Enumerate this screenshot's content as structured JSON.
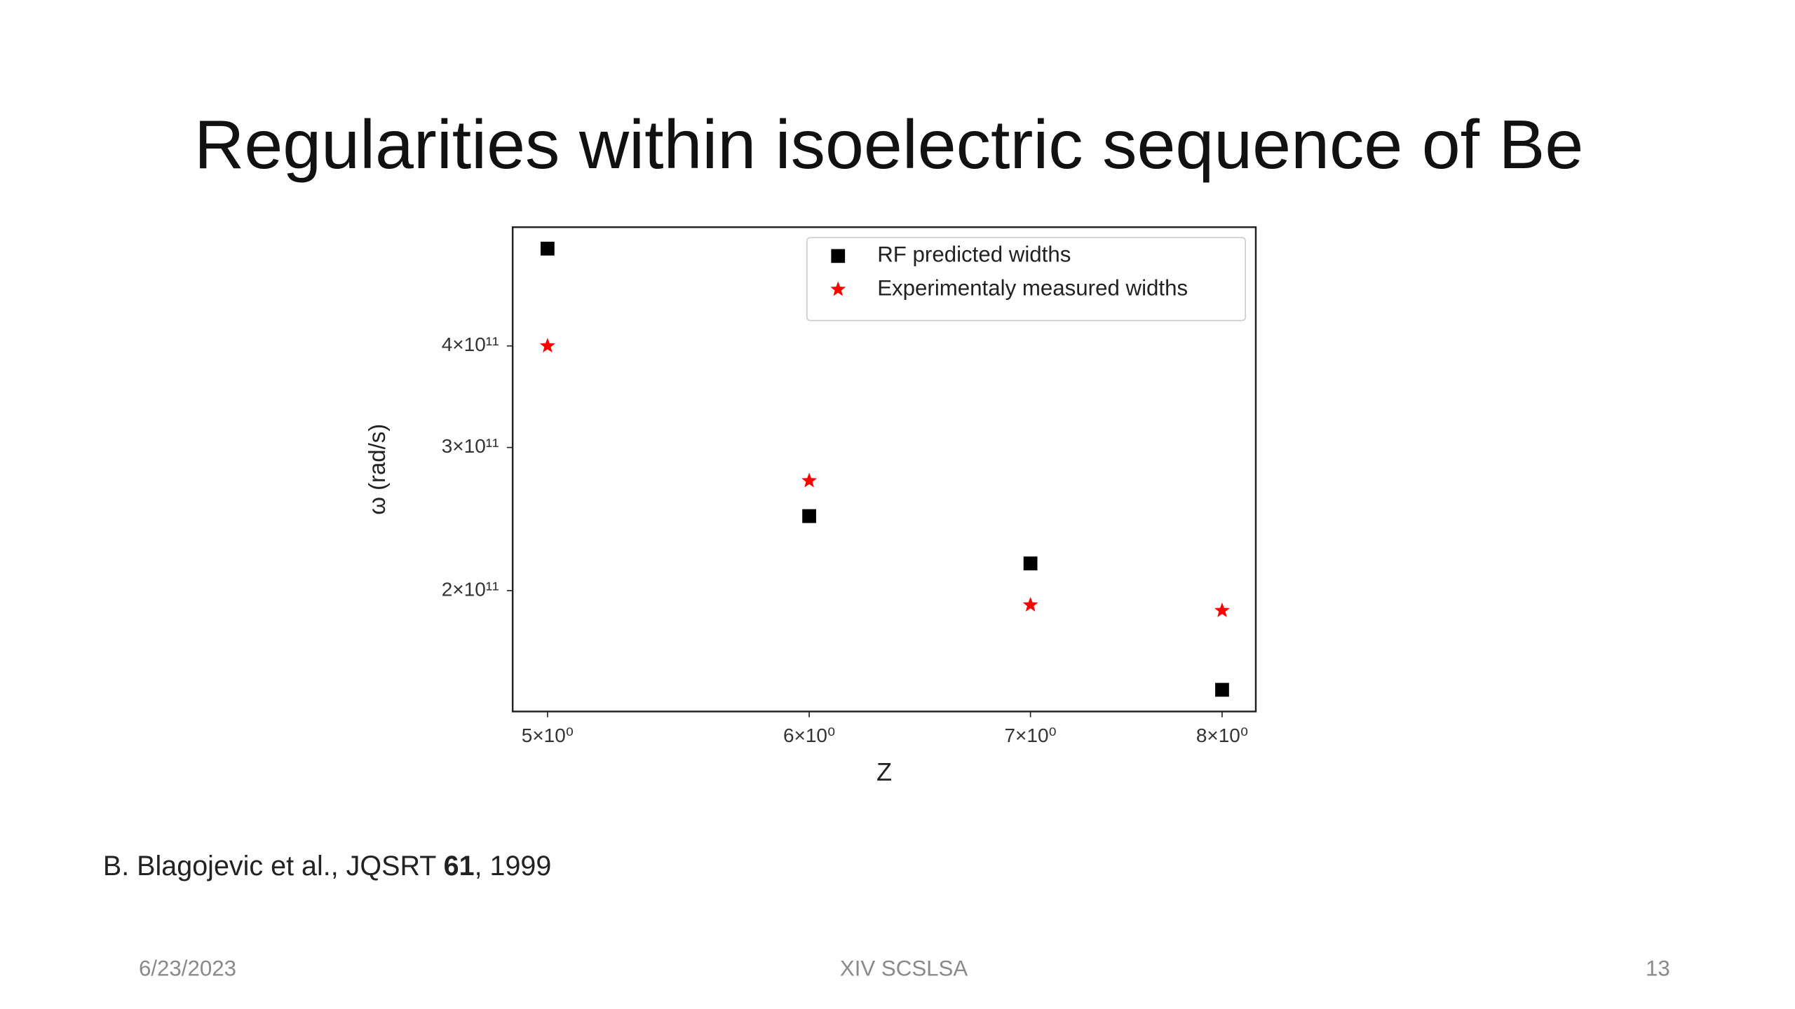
{
  "slide": {
    "title": "Regularities within isoelectric sequence of Be",
    "citation": {
      "before": "B. Blagojevic et al., JQSRT ",
      "volume": "61",
      "after": ", 1999"
    },
    "footer": {
      "date": "6/23/2023",
      "event": "XIV SCSLSA",
      "page": "13"
    }
  },
  "chart_data": {
    "type": "scatter",
    "xlabel": "Z",
    "ylabel": "ω (rad/s)",
    "xscale": "log",
    "yscale": "log",
    "xlim": [
      4.88,
      8.19
    ],
    "ylim": [
      142000000000,
      560000000000
    ],
    "xticks": [
      {
        "value": 5,
        "label": "5×10⁰"
      },
      {
        "value": 6,
        "label": "6×10⁰"
      },
      {
        "value": 7,
        "label": "7×10⁰"
      },
      {
        "value": 8,
        "label": "8×10⁰"
      }
    ],
    "yticks": [
      {
        "value": 200000000000,
        "label": "2×10¹¹"
      },
      {
        "value": 300000000000,
        "label": "3×10¹¹"
      },
      {
        "value": 400000000000,
        "label": "4×10¹¹"
      }
    ],
    "legend": "upper right",
    "series": [
      {
        "name": "RF predicted widths",
        "color": "#000000",
        "marker": "square",
        "x": [
          5,
          6,
          7,
          8
        ],
        "values": [
          527000000000,
          247000000000,
          216000000000,
          151000000000
        ]
      },
      {
        "name": "Experimentaly measured widths",
        "color": "#ff0000",
        "marker": "star",
        "x": [
          5,
          6,
          7,
          8
        ],
        "values": [
          400000000000,
          273000000000,
          192000000000,
          189000000000
        ]
      }
    ]
  }
}
